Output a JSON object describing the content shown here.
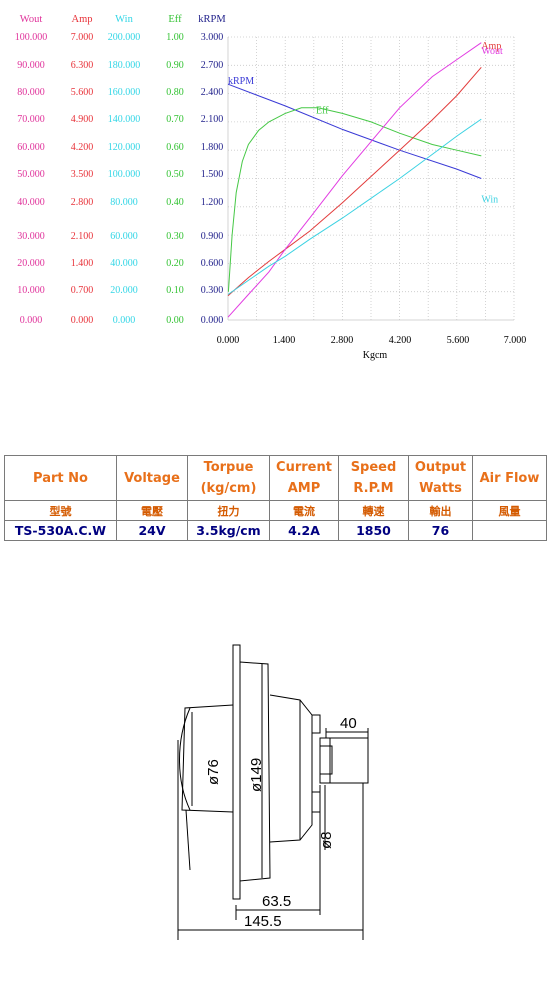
{
  "chart_data": {
    "type": "line",
    "xlabel": "Kgcm",
    "x_ticks": [
      "0.000",
      "1.400",
      "2.800",
      "4.200",
      "5.600",
      "7.000"
    ],
    "xlim": [
      0,
      7
    ],
    "axes": [
      {
        "name": "Wout",
        "color": "#e0339b",
        "ticks": [
          "100.000",
          "90.000",
          "80.000",
          "70.000",
          "60.000",
          "50.000",
          "40.000",
          "30.000",
          "20.000",
          "10.000",
          "0.000"
        ],
        "max": 100
      },
      {
        "name": "Amp",
        "color": "#e8333a",
        "ticks": [
          "7.000",
          "6.300",
          "5.600",
          "4.900",
          "4.200",
          "3.500",
          "2.800",
          "2.100",
          "1.400",
          "0.700",
          "0.000"
        ],
        "max": 7
      },
      {
        "name": "Win",
        "color": "#33d6e6",
        "ticks": [
          "200.000",
          "180.000",
          "160.000",
          "140.000",
          "120.000",
          "100.000",
          "80.000",
          "60.000",
          "40.000",
          "20.000",
          "0.000"
        ],
        "max": 200
      },
      {
        "name": "Eff",
        "color": "#33c233",
        "ticks": [
          "1.00",
          "0.90",
          "0.80",
          "0.70",
          "0.60",
          "0.50",
          "0.40",
          "0.30",
          "0.20",
          "0.10",
          "0.00"
        ],
        "max": 1
      },
      {
        "name": "kRPM",
        "color": "#1f1f8a",
        "ticks": [
          "3.000",
          "2.700",
          "2.400",
          "2.100",
          "1.800",
          "1.500",
          "1.200",
          "0.900",
          "0.600",
          "0.300",
          "0.000"
        ],
        "max": 3
      }
    ],
    "series": [
      {
        "name": "kRPM",
        "axis": "kRPM",
        "color": "#3a3ad6",
        "label_x": 0,
        "label_y": 2.5,
        "x": [
          0,
          1.4,
          2.8,
          4.2,
          5.6,
          6.2
        ],
        "y": [
          2.5,
          2.27,
          2.02,
          1.8,
          1.6,
          1.5
        ]
      },
      {
        "name": "Eff",
        "axis": "Eff",
        "color": "#46c846",
        "label_x": 2.15,
        "label_y": 0.73,
        "x": [
          0.01,
          0.1,
          0.2,
          0.35,
          0.5,
          0.75,
          1.0,
          1.4,
          1.8,
          2.2,
          2.8,
          3.5,
          4.2,
          5.0,
          5.6,
          6.2
        ],
        "y": [
          0.1,
          0.3,
          0.45,
          0.56,
          0.62,
          0.67,
          0.7,
          0.73,
          0.75,
          0.75,
          0.73,
          0.7,
          0.66,
          0.62,
          0.6,
          0.58
        ]
      },
      {
        "name": "Amp",
        "axis": "Amp",
        "color": "#e23c3c",
        "label_x": 6.2,
        "label_y": 6.7,
        "x": [
          0,
          0.5,
          1.0,
          1.4,
          2.0,
          2.8,
          3.5,
          4.2,
          5.0,
          5.6,
          6.2
        ],
        "y": [
          0.6,
          1.05,
          1.45,
          1.75,
          2.2,
          2.9,
          3.55,
          4.2,
          4.95,
          5.55,
          6.25
        ]
      },
      {
        "name": "Wout",
        "axis": "Wout",
        "color": "#e23ce2",
        "label_x": 6.2,
        "label_y": 94,
        "x": [
          0,
          0.5,
          1.0,
          1.4,
          2.0,
          2.8,
          3.5,
          4.2,
          5.0,
          5.6,
          6.2
        ],
        "y": [
          1,
          9,
          17,
          25,
          36,
          51,
          63,
          75,
          86,
          92,
          98
        ]
      },
      {
        "name": "Win",
        "axis": "Win",
        "color": "#3cd2e2",
        "label_x": 6.2,
        "label_y": 83,
        "x": [
          0,
          0.5,
          1.0,
          1.4,
          2.0,
          2.8,
          3.5,
          4.2,
          5.0,
          5.6,
          6.2
        ],
        "y": [
          18,
          28,
          38,
          45,
          57,
          72,
          86,
          100,
          117,
          130,
          142
        ]
      }
    ]
  },
  "spec_table": {
    "headers": [
      "Part No",
      "Voltage",
      "Torpue (kg/cm)",
      "Current AMP",
      "Speed R.P.M",
      "Output Watts",
      "Air Flow"
    ],
    "chinese": [
      "型號",
      "電壓",
      "扭力",
      "電流",
      "轉速",
      "輸出",
      "風量"
    ],
    "values": [
      "TS-530A.C.W",
      "24V",
      "3.5kg/cm",
      "4.2A",
      "1850",
      "76",
      ""
    ]
  },
  "drawing": {
    "dia_body": "ø76",
    "dia_flange": "ø149",
    "dia_shaft": "ø8",
    "len_shaft": "40",
    "len_body": "63.5",
    "len_total": "145.5"
  }
}
